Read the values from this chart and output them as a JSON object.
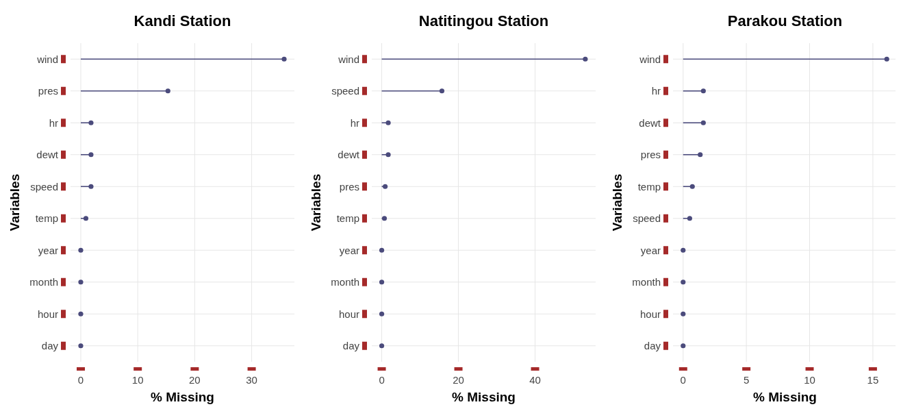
{
  "chart_data": [
    {
      "type": "lollipop",
      "orientation": "horizontal",
      "title": "Kandi Station",
      "xlabel": "% Missing",
      "ylabel": "Variables",
      "categories": [
        "wind",
        "pres",
        "hr",
        "dewt",
        "speed",
        "temp",
        "year",
        "month",
        "hour",
        "day"
      ],
      "series": [
        {
          "color": "#4b4b7c",
          "values": [
            35.7,
            15.3,
            1.8,
            1.8,
            1.8,
            0.9,
            0,
            0,
            0,
            0
          ]
        }
      ],
      "xlim": [
        -1.8,
        37.5
      ],
      "xticks": [
        0,
        10,
        20,
        30
      ],
      "grid": true,
      "marker": "circle"
    },
    {
      "type": "lollipop",
      "orientation": "horizontal",
      "title": "Natitingou Station",
      "xlabel": "% Missing",
      "ylabel": "Variables",
      "categories": [
        "wind",
        "speed",
        "hr",
        "dewt",
        "pres",
        "temp",
        "year",
        "month",
        "hour",
        "day"
      ],
      "series": [
        {
          "color": "#4b4b7c",
          "values": [
            53.1,
            15.7,
            1.7,
            1.7,
            0.9,
            0.7,
            0,
            0,
            0,
            0
          ]
        }
      ],
      "xlim": [
        -2.6,
        55.8
      ],
      "xticks": [
        0,
        20,
        40
      ],
      "grid": true,
      "marker": "circle"
    },
    {
      "type": "lollipop",
      "orientation": "horizontal",
      "title": "Parakou Station",
      "xlabel": "% Missing",
      "ylabel": "Variables",
      "categories": [
        "wind",
        "hr",
        "dewt",
        "pres",
        "temp",
        "speed",
        "year",
        "month",
        "hour",
        "day"
      ],
      "series": [
        {
          "color": "#4b4b7c",
          "values": [
            16.1,
            1.6,
            1.6,
            1.35,
            0.73,
            0.52,
            0,
            0,
            0,
            0
          ]
        }
      ],
      "xlim": [
        -0.8,
        16.9
      ],
      "xticks": [
        0,
        5,
        10,
        15
      ],
      "grid": true,
      "marker": "circle"
    }
  ]
}
